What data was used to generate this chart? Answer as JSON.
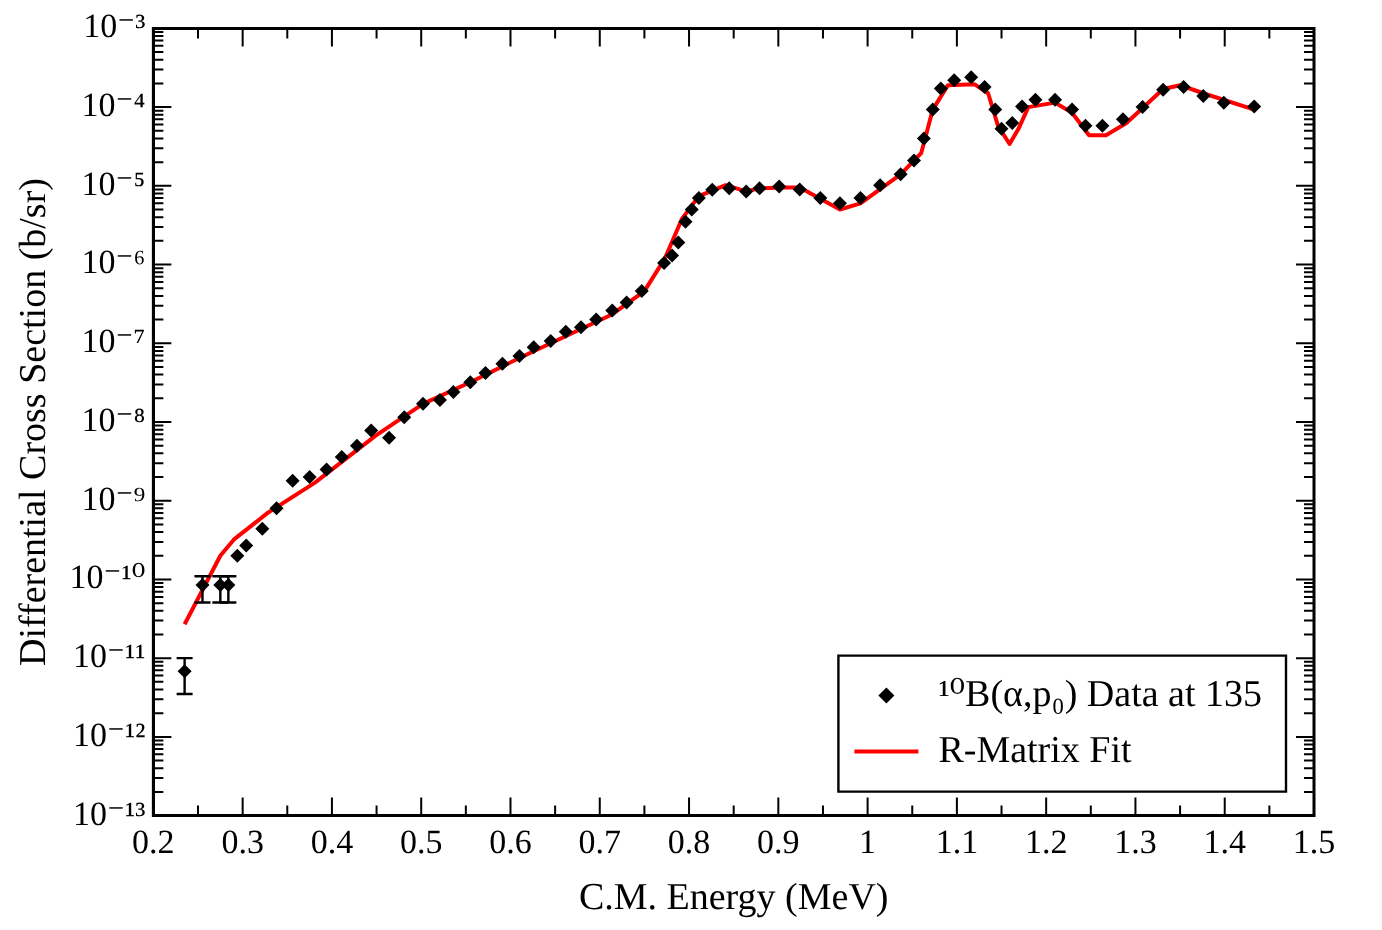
{
  "chart_data": {
    "type": "scatter",
    "xlabel": "C.M. Energy (MeV)",
    "ylabel": "Differential Cross Section (b/sr)",
    "log": "y",
    "grid": false,
    "legend": "bottom right",
    "xlim": [
      0.2,
      1.5
    ],
    "ylim": [
      1e-13,
      0.001
    ],
    "xticks": [
      0.2,
      {
        "value": 0.25,
        "label": null
      },
      0.3,
      {
        "value": 0.35,
        "label": null
      },
      0.4,
      {
        "value": 0.45,
        "label": null
      },
      0.5,
      {
        "value": 0.55,
        "label": null
      },
      0.6,
      {
        "value": 0.65,
        "label": null
      },
      0.7,
      {
        "value": 0.75,
        "label": null
      },
      0.8,
      {
        "value": 0.85,
        "label": null
      },
      0.9,
      {
        "value": 0.95,
        "label": null
      },
      1,
      {
        "value": 1.05,
        "label": null
      },
      1.1,
      {
        "value": 1.15,
        "label": null
      },
      1.2,
      {
        "value": 1.25,
        "label": null
      },
      1.3,
      {
        "value": 1.35,
        "label": null
      },
      1.4,
      {
        "value": 1.45,
        "label": null
      },
      1.5
    ],
    "yticks": [
      {
        "value": 1e-13,
        "label": "10⁻¹³"
      },
      {
        "value": 1e-12,
        "label": "10⁻¹²"
      },
      {
        "value": 1e-11,
        "label": "10⁻¹¹"
      },
      {
        "value": 1e-10,
        "label": "10⁻¹⁰"
      },
      {
        "value": 1e-09,
        "label": "10⁻⁹"
      },
      {
        "value": 1e-08,
        "label": "10⁻⁸"
      },
      {
        "value": 1e-07,
        "label": "10⁻⁷"
      },
      {
        "value": 1e-06,
        "label": "10⁻⁶"
      },
      {
        "value": 1e-05,
        "label": "10⁻⁵"
      },
      {
        "value": 0.0001,
        "label": "10⁻⁴"
      },
      {
        "value": 0.001,
        "label": "10⁻³"
      }
    ],
    "series": [
      {
        "name": "¹⁰B(α,p₀) Data at 135",
        "type": "scatter",
        "marker": "diamond",
        "color": "#000000",
        "x": [
          0.235,
          0.255,
          0.275,
          0.284,
          0.294,
          0.304,
          0.322,
          0.338,
          0.356,
          0.375,
          0.394,
          0.411,
          0.428,
          0.444,
          0.464,
          0.481,
          0.502,
          0.521,
          0.536,
          0.555,
          0.572,
          0.591,
          0.61,
          0.626,
          0.645,
          0.662,
          0.679,
          0.696,
          0.714,
          0.73,
          0.747,
          0.772,
          0.781,
          0.788,
          0.796,
          0.803,
          0.811,
          0.826,
          0.845,
          0.864,
          0.879,
          0.901,
          0.924,
          0.947,
          0.969,
          0.992,
          1.014,
          1.037,
          1.052,
          1.063,
          1.073,
          1.082,
          1.097,
          1.116,
          1.131,
          1.143,
          1.15,
          1.162,
          1.173,
          1.188,
          1.21,
          1.229,
          1.244,
          1.263,
          1.286,
          1.308,
          1.331,
          1.354,
          1.376,
          1.399,
          1.433
        ],
        "values": [
          6.8e-12,
          8.5e-11,
          8.5e-11,
          8.5e-11,
          2e-10,
          2.7e-10,
          4.4e-10,
          8e-10,
          1.8e-09,
          2e-09,
          2.5e-09,
          3.6e-09,
          5e-09,
          7.8e-09,
          6.3e-09,
          1.15e-08,
          1.7e-08,
          1.9e-08,
          2.4e-08,
          3.2e-08,
          4.2e-08,
          5.5e-08,
          6.9e-08,
          8.9e-08,
          1.07e-07,
          1.4e-07,
          1.6e-07,
          2e-07,
          2.6e-07,
          3.3e-07,
          4.6e-07,
          1.05e-06,
          1.3e-06,
          1.9e-06,
          3.5e-06,
          5e-06,
          7e-06,
          8.9e-06,
          9.3e-06,
          8.5e-06,
          9.3e-06,
          9.8e-06,
          9e-06,
          7e-06,
          6e-06,
          7e-06,
          1.02e-05,
          1.4e-05,
          2.1e-05,
          4e-05,
          9.3e-05,
          0.000173,
          0.00022,
          0.00024,
          0.00018,
          9.3e-05,
          5.3e-05,
          6.3e-05,
          0.000102,
          0.000124,
          0.000124,
          9.3e-05,
          5.8e-05,
          5.8e-05,
          7e-05,
          0.0001,
          0.000166,
          0.00018,
          0.000138,
          0.000114,
          0.000102
        ],
        "errors": [
          [
            3.5e-12,
            1e-11
          ],
          [
            5.1e-11,
            1.1e-10
          ],
          [
            5.1e-11,
            1.1e-10
          ],
          [
            5.1e-11,
            1.1e-10
          ],
          null,
          null,
          null,
          null,
          null,
          null,
          null,
          null,
          null,
          null,
          null,
          null,
          null,
          null,
          null,
          null,
          null,
          null,
          null,
          null,
          null,
          null,
          null,
          null,
          null,
          null,
          null,
          null,
          null,
          null,
          null,
          null,
          null,
          null,
          null,
          null,
          null,
          null,
          null,
          null,
          null,
          null,
          null,
          null,
          null,
          null,
          null,
          null,
          null,
          null,
          null,
          null,
          null,
          null,
          null,
          null,
          null,
          null,
          null,
          null,
          null,
          null,
          null,
          null,
          null,
          null,
          null
        ]
      },
      {
        "name": "R-Matrix Fit",
        "type": "line",
        "marker": "none",
        "line_style": "solid",
        "color": "#ff0000",
        "x": [
          0.235,
          0.275,
          0.29,
          0.328,
          0.381,
          0.449,
          0.502,
          0.555,
          0.61,
          0.645,
          0.713,
          0.75,
          0.773,
          0.792,
          0.811,
          0.841,
          0.864,
          0.879,
          0.905,
          0.924,
          0.969,
          0.992,
          1.037,
          1.06,
          1.073,
          1.09,
          1.12,
          1.135,
          1.146,
          1.159,
          1.169,
          1.18,
          1.21,
          1.229,
          1.248,
          1.267,
          1.29,
          1.331,
          1.35,
          1.376,
          1.433
        ],
        "values": [
          2.7e-11,
          2e-10,
          3.2e-10,
          7e-10,
          1.7e-09,
          6.7e-09,
          1.7e-08,
          3.2e-08,
          6.5e-08,
          1e-07,
          2.3e-07,
          4.6e-07,
          1.2e-06,
          3.8e-06,
          7.4e-06,
          1.02e-05,
          8.5e-06,
          9.3e-06,
          9.5e-06,
          9.5e-06,
          5e-06,
          6e-06,
          1.4e-05,
          2.6e-05,
          9.3e-05,
          0.00019,
          0.000195,
          0.00015,
          5.8e-05,
          3.4e-05,
          5.3e-05,
          0.0001,
          0.000114,
          8.5e-05,
          4.4e-05,
          4.4e-05,
          6.3e-05,
          0.00017,
          0.00019,
          0.00015,
          9.3e-05
        ]
      }
    ]
  }
}
